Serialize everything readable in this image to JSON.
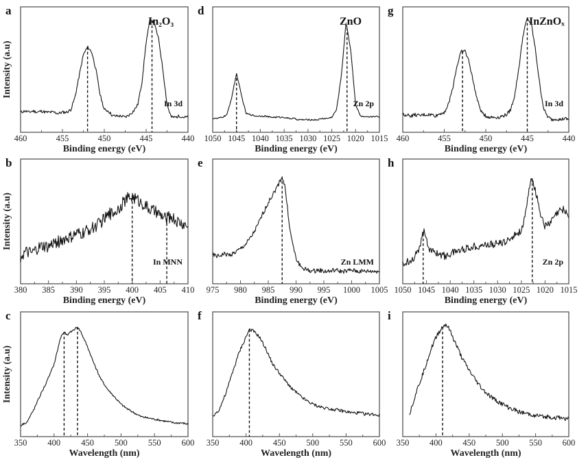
{
  "chart_data": [
    {
      "id": "a",
      "type": "line",
      "letter": "a",
      "title": "In₂O₃",
      "annotation": "In 3d",
      "xlabel": "Binding energy (eV)",
      "ylabel": "Intensity (a.u)",
      "xlim": [
        460,
        440
      ],
      "xticks": [
        460,
        455,
        450,
        445,
        440
      ],
      "ylim": [
        0,
        100
      ],
      "peak_lines": [
        452,
        444.3
      ],
      "x": [
        460,
        459.5,
        459,
        458.5,
        458,
        457.5,
        457,
        456.5,
        456,
        455.5,
        455,
        454.5,
        454,
        453.5,
        453,
        452.5,
        452,
        451.5,
        451,
        450.5,
        450,
        449.5,
        449,
        448.5,
        448,
        447.5,
        447,
        446.5,
        446,
        445.5,
        445,
        444.5,
        444,
        443.5,
        443,
        442.5,
        442,
        441.5,
        441,
        440.5,
        440
      ],
      "y": [
        16,
        17,
        16,
        17,
        16,
        17,
        16,
        16,
        16,
        15,
        16,
        16,
        18,
        28,
        45,
        62,
        68,
        64,
        50,
        30,
        18,
        17,
        13,
        13,
        13,
        12,
        14,
        17,
        22,
        40,
        72,
        91,
        86,
        74,
        50,
        22,
        12,
        12,
        13,
        12,
        12
      ]
    },
    {
      "id": "d",
      "type": "line",
      "letter": "d",
      "title": "ZnO",
      "annotation": "Zn 2p",
      "xlabel": "Binding energy (eV)",
      "ylabel": "",
      "xlim": [
        1050,
        1015
      ],
      "xticks": [
        1050,
        1045,
        1040,
        1035,
        1030,
        1025,
        1020,
        1015
      ],
      "ylim": [
        0,
        100
      ],
      "peak_lines": [
        1045,
        1021.8
      ],
      "x": [
        1050,
        1049,
        1048,
        1047,
        1046,
        1045,
        1044,
        1043,
        1042,
        1041,
        1040,
        1039,
        1038,
        1037,
        1036,
        1035,
        1034,
        1033,
        1032,
        1031,
        1030,
        1029,
        1028,
        1027,
        1026,
        1025,
        1024,
        1023,
        1022,
        1021,
        1020,
        1019,
        1018,
        1017,
        1016,
        1015
      ],
      "y": [
        11,
        11,
        12,
        14,
        28,
        47,
        30,
        15,
        14,
        13,
        13,
        13,
        12,
        12,
        12,
        12,
        11,
        11,
        10,
        10,
        10,
        10,
        10,
        11,
        11,
        12,
        18,
        45,
        88,
        65,
        22,
        13,
        12,
        12,
        13,
        12
      ]
    },
    {
      "id": "g",
      "type": "line",
      "letter": "g",
      "title": "InZnOₓ",
      "annotation": "In 3d",
      "xlabel": "Binding energy (eV)",
      "ylabel": "",
      "xlim": [
        460,
        440
      ],
      "xticks": [
        460,
        455,
        450,
        445,
        440
      ],
      "ylim": [
        0,
        100
      ],
      "peak_lines": [
        452.8,
        445
      ],
      "x": [
        460,
        459.5,
        459,
        458.5,
        458,
        457.5,
        457,
        456.5,
        456,
        455.5,
        455,
        454.5,
        454,
        453.5,
        453,
        452.5,
        452,
        451.5,
        451,
        450.5,
        450,
        449.5,
        449,
        448.5,
        448,
        447.5,
        447,
        446.5,
        446,
        445.5,
        445,
        444.5,
        444,
        443.5,
        443,
        442.5,
        442,
        441.5,
        441,
        440.5,
        440
      ],
      "y": [
        14,
        14,
        13,
        14,
        13,
        14,
        14,
        14,
        13,
        15,
        16,
        22,
        35,
        52,
        64,
        65,
        56,
        40,
        25,
        16,
        13,
        12,
        12,
        12,
        13,
        14,
        18,
        30,
        52,
        78,
        91,
        86,
        65,
        38,
        18,
        12,
        10,
        11,
        10,
        11,
        10
      ]
    },
    {
      "id": "b",
      "type": "line",
      "letter": "b",
      "title": "",
      "annotation": "In MNN",
      "xlabel": "Binding energy (eV)",
      "ylabel": "Intensity (a.u)",
      "xlim": [
        380,
        410
      ],
      "xticks": [
        380,
        385,
        390,
        395,
        400,
        405,
        410
      ],
      "ylim": [
        0,
        100
      ],
      "peak_lines": [
        400,
        406.2
      ],
      "x": [
        380,
        381,
        382,
        383,
        384,
        385,
        386,
        387,
        388,
        389,
        390,
        391,
        392,
        393,
        394,
        395,
        396,
        397,
        398,
        399,
        400,
        401,
        402,
        403,
        404,
        405,
        406,
        407,
        408,
        409,
        410
      ],
      "y": [
        22,
        25,
        24,
        28,
        30,
        29,
        33,
        34,
        36,
        37,
        40,
        40,
        43,
        45,
        48,
        52,
        56,
        58,
        63,
        68,
        70,
        67,
        64,
        60,
        58,
        55,
        52,
        54,
        50,
        48,
        46
      ]
    },
    {
      "id": "e",
      "type": "line",
      "letter": "e",
      "title": "",
      "annotation": "Zn LMM",
      "xlabel": "Binding energy (eV)",
      "ylabel": "",
      "xlim": [
        975,
        1005
      ],
      "xticks": [
        975,
        980,
        985,
        990,
        995,
        1000,
        1005
      ],
      "ylim": [
        0,
        100
      ],
      "peak_lines": [
        987.5
      ],
      "x": [
        975,
        976,
        977,
        978,
        979,
        980,
        981,
        982,
        983,
        984,
        985,
        986,
        987,
        987.5,
        988,
        989,
        990,
        991,
        992,
        993,
        994,
        995,
        996,
        997,
        998,
        999,
        1000,
        1001,
        1002,
        1003,
        1004,
        1005
      ],
      "y": [
        23,
        22,
        24,
        23,
        25,
        28,
        32,
        38,
        46,
        56,
        65,
        73,
        81,
        86,
        78,
        40,
        20,
        13,
        11,
        10,
        11,
        10,
        10,
        11,
        10,
        10,
        11,
        10,
        10,
        10,
        10,
        10
      ]
    },
    {
      "id": "h",
      "type": "line",
      "letter": "h",
      "title": "",
      "annotation": "Zn 2p",
      "xlabel": "Binding energy (eV)",
      "ylabel": "",
      "xlim": [
        1050,
        1015
      ],
      "xticks": [
        1050,
        1045,
        1040,
        1035,
        1030,
        1025,
        1020,
        1015
      ],
      "ylim": [
        0,
        100
      ],
      "peak_lines": [
        1045.7,
        1022.7
      ],
      "x": [
        1050,
        1049,
        1048,
        1047,
        1046,
        1045.5,
        1045,
        1044.5,
        1043,
        1041,
        1039,
        1037,
        1035,
        1033,
        1030,
        1028,
        1027,
        1026,
        1025,
        1024,
        1023.5,
        1022.8,
        1022,
        1021,
        1020,
        1019,
        1018,
        1017,
        1016,
        1015
      ],
      "y": [
        15,
        18,
        20,
        24,
        36,
        43,
        38,
        27,
        25,
        22,
        26,
        28,
        30,
        31,
        32,
        34,
        38,
        40,
        43,
        57,
        72,
        86,
        74,
        57,
        46,
        48,
        54,
        58,
        60,
        54
      ]
    },
    {
      "id": "c",
      "type": "line",
      "letter": "c",
      "title": "",
      "annotation": "",
      "xlabel": "Wavelength (nm)",
      "ylabel": "Intensity (a.u)",
      "xlim": [
        350,
        600
      ],
      "xticks": [
        350,
        400,
        450,
        500,
        550,
        600
      ],
      "ylim": [
        0,
        100
      ],
      "peak_lines": [
        415,
        435
      ],
      "x": [
        350,
        360,
        370,
        380,
        390,
        400,
        410,
        415,
        420,
        425,
        435,
        440,
        450,
        460,
        470,
        480,
        490,
        500,
        510,
        520,
        530,
        540,
        550,
        560,
        570,
        580,
        590,
        600
      ],
      "y": [
        9,
        12,
        22,
        34,
        45,
        58,
        80,
        84,
        81,
        84,
        88,
        84,
        72,
        58,
        46,
        38,
        32,
        26,
        22,
        19,
        16,
        15,
        14,
        13,
        12,
        11,
        11,
        10
      ]
    },
    {
      "id": "f",
      "type": "line",
      "letter": "f",
      "title": "",
      "annotation": "",
      "xlabel": "Wavelength (nm)",
      "ylabel": "",
      "xlim": [
        350,
        600
      ],
      "xticks": [
        350,
        400,
        450,
        500,
        550,
        600
      ],
      "ylim": [
        0,
        100
      ],
      "peak_lines": [
        405
      ],
      "x": [
        350,
        360,
        370,
        380,
        390,
        400,
        405,
        410,
        420,
        430,
        440,
        450,
        460,
        470,
        480,
        490,
        500,
        510,
        520,
        530,
        540,
        550,
        560,
        570,
        580,
        590,
        600
      ],
      "y": [
        16,
        22,
        35,
        52,
        68,
        80,
        86,
        85,
        80,
        70,
        58,
        51,
        44,
        38,
        33,
        29,
        26,
        24,
        23,
        22,
        21,
        20,
        19,
        19,
        18,
        18,
        17
      ]
    },
    {
      "id": "i",
      "type": "line",
      "letter": "i",
      "title": "",
      "annotation": "",
      "xlabel": "Wavelength (nm)",
      "ylabel": "",
      "xlim": [
        350,
        600
      ],
      "xticks": [
        350,
        400,
        450,
        500,
        550,
        600
      ],
      "ylim": [
        0,
        100
      ],
      "peak_lines": [
        410
      ],
      "x": [
        360,
        370,
        380,
        390,
        400,
        410,
        415,
        420,
        430,
        440,
        450,
        460,
        470,
        480,
        490,
        500,
        510,
        520,
        530,
        540,
        550,
        560,
        570,
        580,
        590,
        600
      ],
      "y": [
        18,
        35,
        50,
        66,
        80,
        88,
        90,
        86,
        74,
        62,
        53,
        45,
        38,
        33,
        29,
        26,
        23,
        21,
        19,
        18,
        17,
        16,
        16,
        15,
        15,
        14
      ]
    }
  ]
}
